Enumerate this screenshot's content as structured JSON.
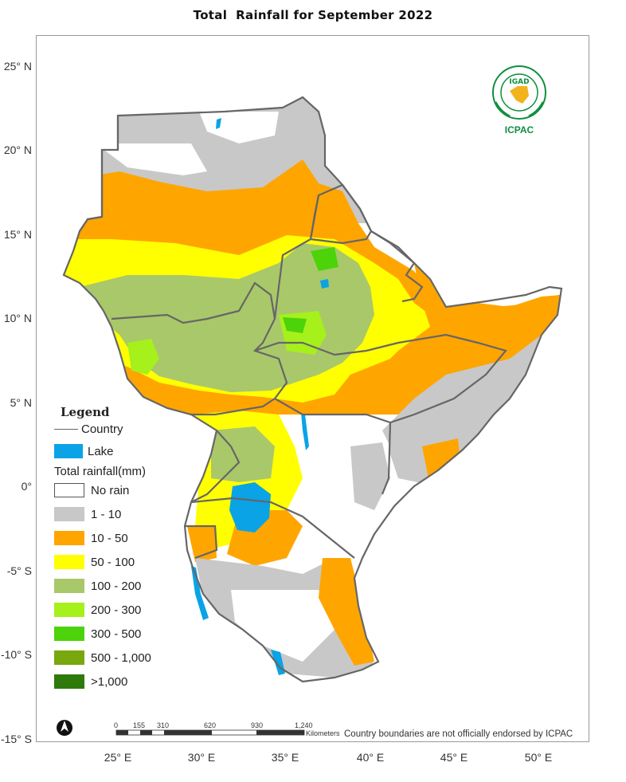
{
  "map": {
    "title": "Total  Rainfall for September 2022",
    "lat_labels": [
      "25° N",
      "20° N",
      "15° N",
      "10° N",
      "5° N",
      "0°",
      "-5° S",
      "-10° S",
      "-15° S"
    ],
    "lon_labels": [
      "25° E",
      "30° E",
      "35° E",
      "40° E",
      "45° E",
      "50° E"
    ],
    "note": "Country boundaries are not officially endorsed by ICPAC"
  },
  "legend": {
    "title": "Legend",
    "country_label": "Country",
    "lake_label": "Lake",
    "rain_title": "Total rainfall(mm)",
    "classes": [
      {
        "label": "No rain",
        "color": "#ffffff"
      },
      {
        "label": "1 - 10",
        "color": "#c8c8c8"
      },
      {
        "label": "10 - 50",
        "color": "#ffa500"
      },
      {
        "label": "50 - 100",
        "color": "#ffff00"
      },
      {
        "label": "100 - 200",
        "color": "#a9c86a"
      },
      {
        "label": "200 - 300",
        "color": "#a6f01c"
      },
      {
        "label": "300 - 500",
        "color": "#4cd30a"
      },
      {
        "label": "500 - 1,000",
        "color": "#78a80e"
      },
      {
        "label": ">1,000",
        "color": "#2e7a0a"
      }
    ],
    "lake_color": "#0aa3e6",
    "country_color": "#666666"
  },
  "scale_bar": {
    "ticks": [
      "0",
      "155",
      "310",
      "620",
      "930",
      "1,240"
    ],
    "unit": "Kilometers"
  },
  "logo": {
    "top_text": "IGAD",
    "bottom_text": "ICPAC"
  }
}
